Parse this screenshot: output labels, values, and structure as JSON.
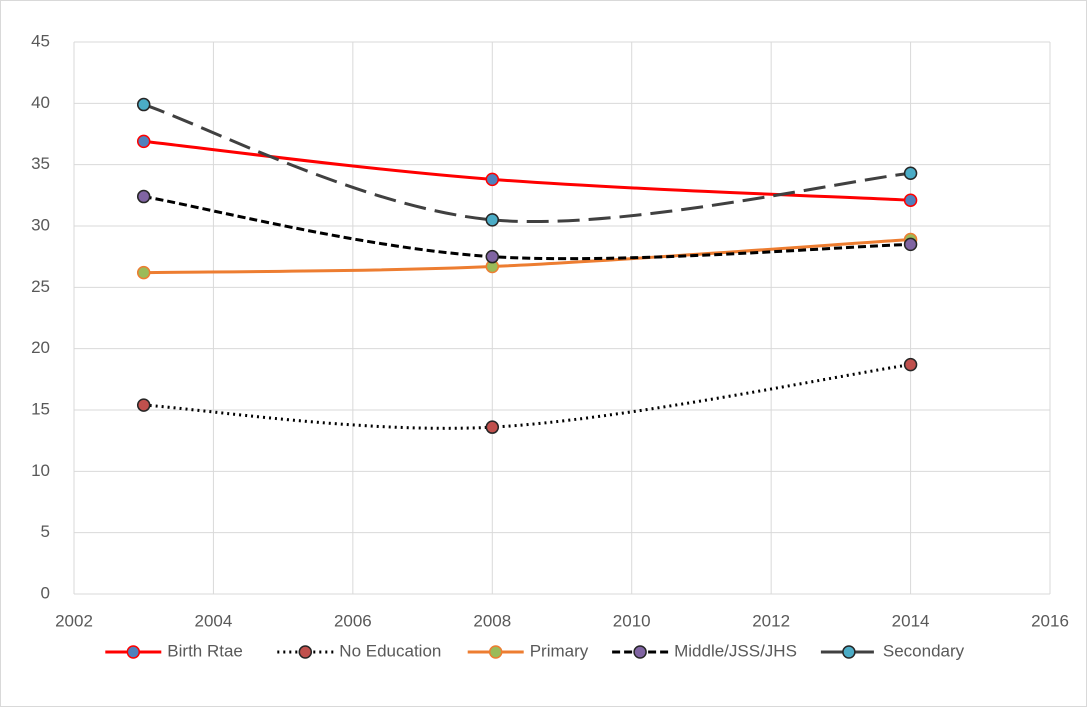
{
  "chart_data": {
    "type": "line",
    "x": [
      2003,
      2008,
      2014
    ],
    "series": [
      {
        "name": "Birth Rtae",
        "color": "#ff0000",
        "marker_color": "#4f81bd",
        "dash": "solid",
        "values": [
          36.9,
          33.8,
          32.1
        ]
      },
      {
        "name": "No Education",
        "color": "#000000",
        "marker_color": "#c0504d",
        "dash": "dotted",
        "values": [
          15.4,
          13.6,
          18.7
        ]
      },
      {
        "name": "Primary",
        "color": "#ed7d31",
        "marker_color": "#9bbb59",
        "dash": "solid",
        "values": [
          26.2,
          26.7,
          28.9
        ]
      },
      {
        "name": "Middle/JSS/JHS",
        "color": "#000000",
        "marker_color": "#8064a2",
        "dash": "dashed",
        "values": [
          32.4,
          27.5,
          28.5
        ]
      },
      {
        "name": "Secondary",
        "color": "#404040",
        "marker_color": "#4bacc6",
        "dash": "long-dash",
        "values": [
          39.9,
          30.5,
          34.3
        ]
      }
    ],
    "xlim": [
      2002,
      2016
    ],
    "xticks": [
      2002,
      2004,
      2006,
      2008,
      2010,
      2012,
      2014,
      2016
    ],
    "ylim": [
      0,
      45
    ],
    "yticks": [
      0,
      5,
      10,
      15,
      20,
      25,
      30,
      35,
      40,
      45
    ],
    "grid": true,
    "smooth": true,
    "legend": "bottom"
  }
}
